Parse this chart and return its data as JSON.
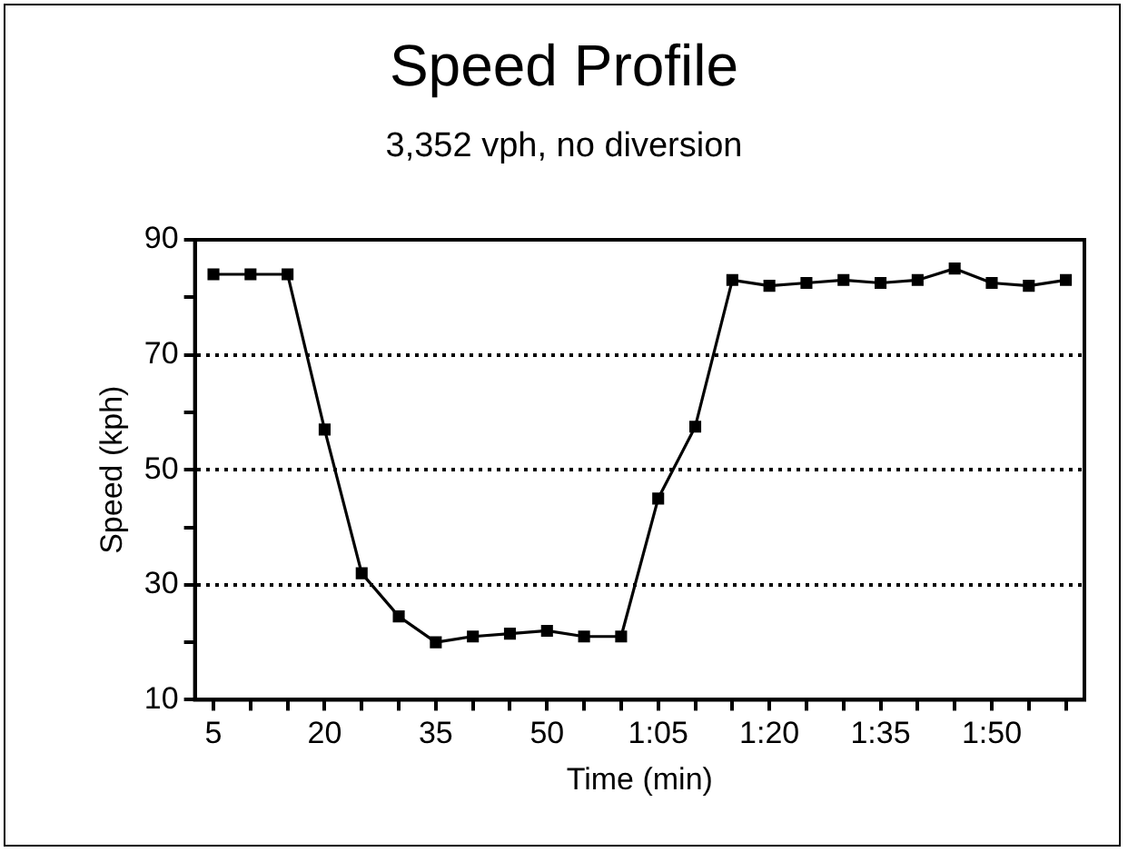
{
  "chart_data": {
    "type": "line",
    "title": "Speed Profile",
    "subtitle": "3,352 vph, no diversion",
    "xlabel": "Time (min)",
    "ylabel": "Speed (kph)",
    "x": [
      5,
      10,
      15,
      20,
      25,
      30,
      35,
      40,
      45,
      50,
      55,
      60,
      65,
      70,
      75,
      80,
      85,
      90,
      95,
      100,
      105,
      110,
      115,
      120
    ],
    "series": [
      {
        "color": "#000000",
        "values": [
          84,
          84,
          84,
          57,
          32,
          24.5,
          20,
          21,
          21.5,
          22,
          21,
          21,
          45,
          57.5,
          83,
          82,
          82.5,
          83,
          82.5,
          83,
          85,
          82.5,
          82,
          83
        ]
      }
    ],
    "xlim": [
      2.5,
      122.5
    ],
    "xticks": [
      5,
      {
        "value": 10,
        "label": null
      },
      {
        "value": 15,
        "label": null
      },
      20,
      {
        "value": 25,
        "label": null
      },
      {
        "value": 30,
        "label": null
      },
      35,
      {
        "value": 40,
        "label": null
      },
      {
        "value": 45,
        "label": null
      },
      50,
      {
        "value": 55,
        "label": null
      },
      {
        "value": 60,
        "label": null
      },
      {
        "value": 65,
        "label": "1:05"
      },
      {
        "value": 70,
        "label": null
      },
      {
        "value": 75,
        "label": null
      },
      {
        "value": 80,
        "label": "1:20"
      },
      {
        "value": 85,
        "label": null
      },
      {
        "value": 90,
        "label": null
      },
      {
        "value": 95,
        "label": "1:35"
      },
      {
        "value": 100,
        "label": null
      },
      {
        "value": 105,
        "label": null
      },
      {
        "value": 110,
        "label": "1:50"
      },
      {
        "value": 115,
        "label": null
      },
      {
        "value": 120,
        "label": null
      }
    ],
    "ylim": [
      10,
      90
    ],
    "yticks": [
      10,
      {
        "value": 20,
        "label": null
      },
      30,
      {
        "value": 40,
        "label": null
      },
      50,
      {
        "value": 60,
        "label": null
      },
      70,
      {
        "value": 80,
        "label": null
      },
      90
    ],
    "grid": "y",
    "legend": false,
    "marker": "square",
    "line_style": "solid"
  }
}
